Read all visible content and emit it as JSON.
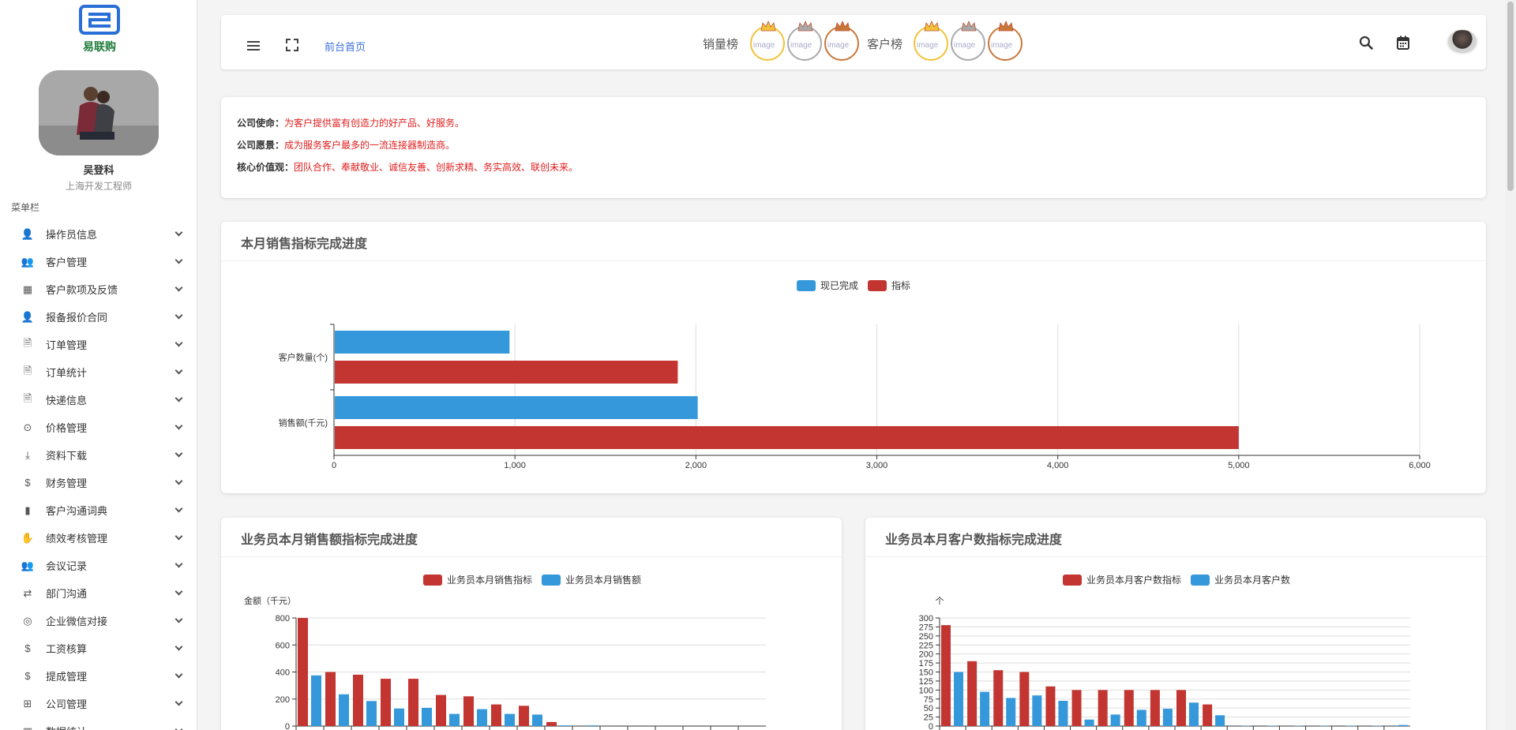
{
  "sidebar": {
    "logo_text": "易联购",
    "user_name": "吴登科",
    "user_title": "上海开发工程师",
    "menu_caption": "菜单栏",
    "items": [
      {
        "label": "操作员信息",
        "icon": "user-edit-icon"
      },
      {
        "label": "客户管理",
        "icon": "users-icon"
      },
      {
        "label": "客户款项及反馈",
        "icon": "table-icon"
      },
      {
        "label": "报备报价合同",
        "icon": "user-lock-icon"
      },
      {
        "label": "订单管理",
        "icon": "file-icon"
      },
      {
        "label": "订单统计",
        "icon": "file-icon"
      },
      {
        "label": "快递信息",
        "icon": "file-invoice-icon"
      },
      {
        "label": "价格管理",
        "icon": "coin-icon"
      },
      {
        "label": "资料下载",
        "icon": "download-icon"
      },
      {
        "label": "财务管理",
        "icon": "dollar-icon"
      },
      {
        "label": "客户沟通词典",
        "icon": "book-icon"
      },
      {
        "label": "绩效考核管理",
        "icon": "hand-coin-icon"
      },
      {
        "label": "会议记录",
        "icon": "group-icon"
      },
      {
        "label": "部门沟通",
        "icon": "exchange-icon"
      },
      {
        "label": "企业微信对接",
        "icon": "wechat-icon"
      },
      {
        "label": "工资核算",
        "icon": "dollar-icon"
      },
      {
        "label": "提成管理",
        "icon": "dollar-icon"
      },
      {
        "label": "公司管理",
        "icon": "sitemap-icon"
      },
      {
        "label": "数据统计",
        "icon": "chart-icon"
      }
    ]
  },
  "topbar": {
    "home_link": "前台首页",
    "sales_rank_label": "销量榜",
    "customer_rank_label": "客户榜",
    "broken_image_alt": "image",
    "medal_colors": [
      "#f2c23a",
      "#a9a9a9",
      "#c8773a"
    ]
  },
  "mission": {
    "lines": [
      {
        "label": "公司使命：",
        "value": "为客户提供富有创造力的好产品、好服务。"
      },
      {
        "label": "公司愿景：",
        "value": "成为服务客户最多的一流连接器制造商。"
      },
      {
        "label": "核心价值观：",
        "value": "团队合作、奉献敬业、诚信友善、创新求精、务实高效、联创未来。"
      }
    ]
  },
  "colors": {
    "blue": "#3498db",
    "red": "#c23531"
  },
  "chart_data": [
    {
      "type": "bar",
      "orientation": "horizontal",
      "title": "本月销售指标完成进度",
      "categories": [
        "客户数量(个)",
        "销售额(千元)"
      ],
      "series": [
        {
          "name": "现已完成",
          "values": [
            970,
            2010
          ]
        },
        {
          "name": "指标",
          "values": [
            1900,
            5000
          ]
        }
      ],
      "xlim": [
        0,
        6000
      ],
      "ticks": [
        "0",
        "1,000",
        "2,000",
        "3,000",
        "4,000",
        "5,000",
        "6,000"
      ],
      "legend": "top-center"
    },
    {
      "type": "bar",
      "title": "业务员本月销售额指标完成进度",
      "ylabel": "金额（千元）",
      "ylim": [
        0,
        800
      ],
      "ticks": [
        "0",
        "200",
        "400",
        "600",
        "800"
      ],
      "series": [
        {
          "name": "业务员本月销售指标",
          "values": [
            800,
            400,
            380,
            350,
            350,
            230,
            220,
            160,
            150,
            30,
            0,
            0,
            0,
            0,
            0,
            0,
            0
          ]
        },
        {
          "name": "业务员本月销售额",
          "values": [
            375,
            235,
            185,
            130,
            135,
            90,
            125,
            90,
            85,
            5,
            5,
            0,
            0,
            0,
            0,
            0,
            0
          ]
        }
      ],
      "legend": "top-center"
    },
    {
      "type": "bar",
      "title": "业务员本月客户数指标完成进度",
      "ylabel": "个",
      "ylim": [
        0,
        300
      ],
      "ticks": [
        "0",
        "25",
        "50",
        "75",
        "100",
        "125",
        "150",
        "175",
        "200",
        "225",
        "250",
        "275",
        "300"
      ],
      "series": [
        {
          "name": "业务员本月客户数指标",
          "values": [
            280,
            180,
            155,
            150,
            110,
            100,
            100,
            100,
            100,
            100,
            60,
            0,
            0,
            0,
            0,
            0,
            0,
            0
          ]
        },
        {
          "name": "业务员本月客户数",
          "values": [
            150,
            95,
            78,
            85,
            70,
            18,
            32,
            45,
            48,
            65,
            30,
            1,
            1,
            1,
            1,
            1,
            1,
            3
          ]
        }
      ],
      "legend": "top-center"
    }
  ]
}
